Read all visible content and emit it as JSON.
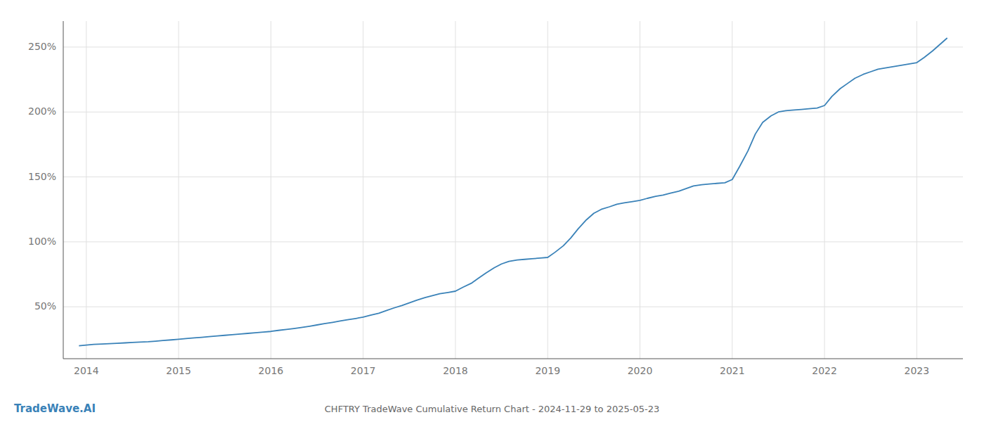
{
  "chart_data": {
    "type": "line",
    "title": "CHFTRY TradeWave Cumulative Return Chart - 2024-11-29 to 2025-05-23",
    "annotations": [
      "TradeWave.AI"
    ],
    "color": "#3a82b8",
    "grid": true,
    "x": [
      2013.92,
      2014.0,
      2014.08,
      2014.17,
      2014.25,
      2014.33,
      2014.42,
      2014.5,
      2014.58,
      2014.67,
      2014.75,
      2014.83,
      2014.92,
      2015.0,
      2015.08,
      2015.17,
      2015.25,
      2015.33,
      2015.42,
      2015.5,
      2015.58,
      2015.67,
      2015.75,
      2015.83,
      2015.92,
      2016.0,
      2016.08,
      2016.17,
      2016.25,
      2016.33,
      2016.42,
      2016.5,
      2016.58,
      2016.67,
      2016.75,
      2016.83,
      2016.92,
      2017.0,
      2017.08,
      2017.17,
      2017.25,
      2017.33,
      2017.42,
      2017.5,
      2017.58,
      2017.67,
      2017.75,
      2017.83,
      2017.92,
      2018.0,
      2018.08,
      2018.17,
      2018.25,
      2018.33,
      2018.42,
      2018.5,
      2018.58,
      2018.67,
      2018.75,
      2018.83,
      2018.92,
      2019.0,
      2019.08,
      2019.17,
      2019.25,
      2019.33,
      2019.42,
      2019.5,
      2019.58,
      2019.67,
      2019.75,
      2019.83,
      2019.92,
      2020.0,
      2020.08,
      2020.17,
      2020.25,
      2020.33,
      2020.42,
      2020.5,
      2020.58,
      2020.67,
      2020.75,
      2020.83,
      2020.92,
      2021.0,
      2021.08,
      2021.17,
      2021.25,
      2021.33,
      2021.42,
      2021.5,
      2021.58,
      2021.67,
      2021.75,
      2021.83,
      2021.92,
      2022.0,
      2022.08,
      2022.17,
      2022.25,
      2022.33,
      2022.42,
      2022.5,
      2022.58,
      2022.67,
      2022.75,
      2022.83,
      2022.92,
      2023.0,
      2023.08,
      2023.17,
      2023.25,
      2023.33
    ],
    "values": [
      20,
      20.5,
      21,
      21.3,
      21.6,
      21.9,
      22.2,
      22.5,
      22.8,
      23.1,
      23.5,
      24,
      24.5,
      25,
      25.5,
      26,
      26.5,
      27,
      27.5,
      28,
      28.5,
      29,
      29.5,
      30,
      30.5,
      31,
      31.8,
      32.5,
      33.2,
      34,
      35,
      36,
      37,
      38,
      39,
      40,
      41,
      42,
      43.5,
      45,
      47,
      49,
      51,
      53,
      55,
      57,
      58.5,
      60,
      61,
      62,
      65,
      68,
      72,
      76,
      80,
      83,
      85,
      86,
      86.5,
      87,
      87.5,
      88,
      92,
      97,
      103,
      110,
      117,
      122,
      125,
      127,
      129,
      130,
      131,
      132,
      133.5,
      135,
      136,
      137.5,
      139,
      141,
      143,
      144,
      144.5,
      145,
      145.5,
      148,
      158,
      170,
      183,
      192,
      197,
      200,
      201,
      201.5,
      202,
      202.5,
      203,
      205,
      212,
      218,
      222,
      226,
      229,
      231,
      233,
      234,
      235,
      236,
      237,
      238,
      242,
      247,
      252,
      257
    ],
    "xlim": [
      2013.75,
      2023.5
    ],
    "xticks": [
      2014,
      2015,
      2016,
      2017,
      2018,
      2019,
      2020,
      2021,
      2022,
      2023
    ],
    "ylim": [
      10,
      270
    ],
    "yticks": [
      {
        "value": 50,
        "label": "50%"
      },
      {
        "value": 100,
        "label": "100%"
      },
      {
        "value": 150,
        "label": "150%"
      },
      {
        "value": 200,
        "label": "200%"
      },
      {
        "value": 250,
        "label": "250%"
      }
    ]
  }
}
